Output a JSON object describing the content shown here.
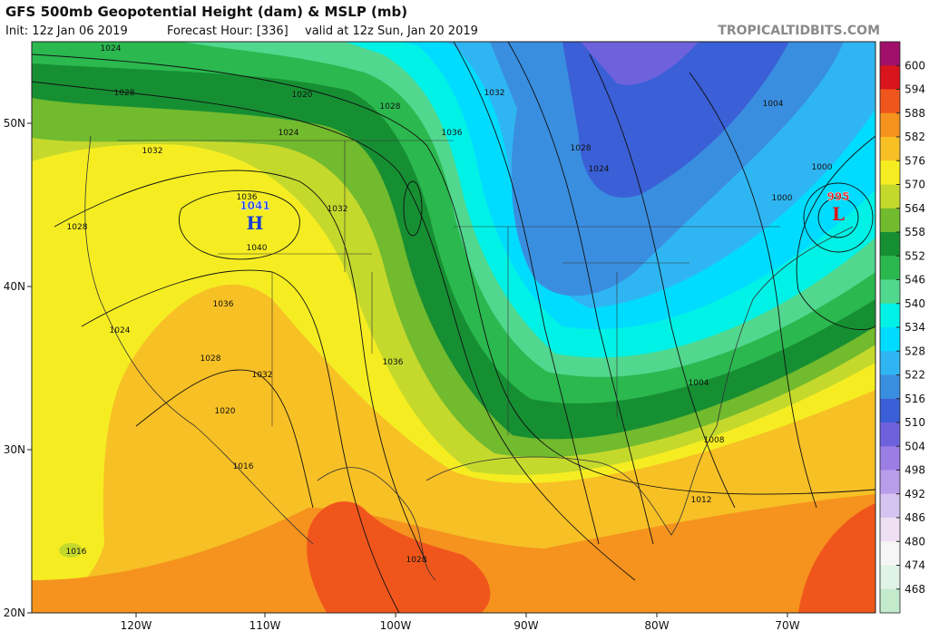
{
  "header": {
    "title": "GFS 500mb Geopotential Height (dam) & MSLP (mb)",
    "init": "Init: 12z Jan 06 2019",
    "forecast_hour": "Forecast Hour: [336]",
    "valid": "valid at 12z Sun, Jan 20 2019",
    "source": "TROPICALTIDBITS.COM"
  },
  "colorbar": {
    "levels": [
      600,
      594,
      588,
      582,
      576,
      570,
      564,
      558,
      552,
      546,
      540,
      534,
      528,
      522,
      516,
      510,
      504,
      498,
      492,
      486,
      480,
      474,
      468
    ],
    "colors": [
      "#a0106a",
      "#d8141c",
      "#f0561c",
      "#f5931e",
      "#f7c025",
      "#f5ed22",
      "#c5d92c",
      "#72ba2e",
      "#168f32",
      "#2bb84f",
      "#52d78e",
      "#00f2e6",
      "#00dcff",
      "#2fb6f2",
      "#3a8ee0",
      "#3a5fd6",
      "#6e62dc",
      "#9a7ee4",
      "#b89eea",
      "#d6c4f0",
      "#eee0f2",
      "#f6f6f6",
      "#dff3e6",
      "#c4eacc"
    ]
  },
  "axes": {
    "lat_labels": [
      "50N",
      "40N",
      "30N",
      "20N"
    ],
    "lon_labels": [
      "120W",
      "110W",
      "100W",
      "90W",
      "80W",
      "70W"
    ]
  },
  "pressure_centers": [
    {
      "symbol": "H",
      "value": "1041"
    },
    {
      "symbol": "L",
      "value": "995"
    }
  ],
  "isobar_labels": [
    "1024",
    "1028",
    "1020",
    "1028",
    "1024",
    "1032",
    "1036",
    "1032",
    "1028",
    "1024",
    "1004",
    "1000",
    "1000",
    "1036",
    "1040",
    "1032",
    "1028",
    "1036",
    "1024",
    "1028",
    "1032",
    "1036",
    "1020",
    "1016",
    "1004",
    "1008",
    "1012",
    "1016",
    "1028"
  ]
}
